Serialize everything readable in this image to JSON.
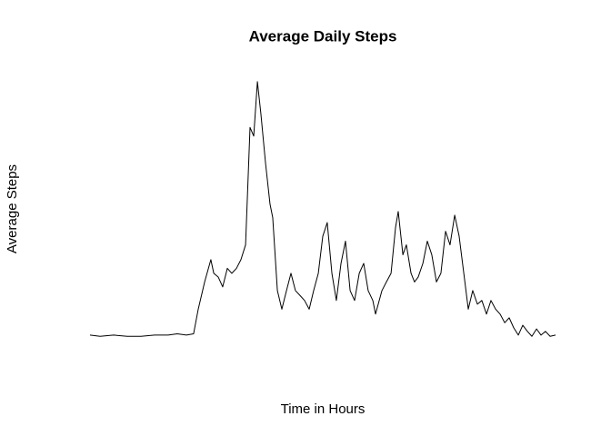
{
  "chart_data": {
    "type": "line",
    "title": "Average Daily Steps",
    "xlabel": "Time in Hours",
    "ylabel": "Average Steps",
    "color": "#000000",
    "x": [
      0,
      0.52,
      1.22,
      1.92,
      2.63,
      3.33,
      4.03,
      4.5,
      4.97,
      5.34,
      5.58,
      5.91,
      6.23,
      6.38,
      6.61,
      6.84,
      7.08,
      7.31,
      7.55,
      7.78,
      8.02,
      8.25,
      8.44,
      8.63,
      8.81,
      9.05,
      9.28,
      9.42,
      9.66,
      9.89,
      10.13,
      10.36,
      10.59,
      10.83,
      11.06,
      11.3,
      11.53,
      11.77,
      12.0,
      12.23,
      12.47,
      12.7,
      12.94,
      13.17,
      13.41,
      13.64,
      13.88,
      14.11,
      14.34,
      14.58,
      14.72,
      15.05,
      15.28,
      15.52,
      15.75,
      15.89,
      16.13,
      16.31,
      16.55,
      16.73,
      16.92,
      17.16,
      17.39,
      17.62,
      17.86,
      18.09,
      18.33,
      18.56,
      18.8,
      19.03,
      19.27,
      19.5,
      19.73,
      19.97,
      20.2,
      20.44,
      20.67,
      20.91,
      21.14,
      21.38,
      21.61,
      21.84,
      22.08,
      22.31,
      22.55,
      22.78,
      23.02,
      23.25,
      23.48,
      23.72,
      24
    ],
    "values": [
      1,
      0,
      1,
      0,
      0,
      1,
      1,
      2,
      1,
      2,
      22,
      44,
      62,
      51,
      48,
      40,
      55,
      51,
      55,
      62,
      74,
      169,
      162,
      206,
      180,
      140,
      107,
      96,
      37,
      22,
      37,
      51,
      37,
      33,
      29,
      22,
      37,
      51,
      81,
      92,
      51,
      29,
      59,
      77,
      37,
      29,
      51,
      59,
      37,
      29,
      18,
      37,
      44,
      51,
      88,
      101,
      66,
      74,
      51,
      44,
      48,
      59,
      77,
      66,
      44,
      51,
      85,
      74,
      98,
      81,
      51,
      22,
      37,
      26,
      29,
      18,
      29,
      22,
      18,
      11,
      15,
      7,
      1,
      9,
      4,
      0,
      6,
      1,
      4,
      0,
      1
    ],
    "xlim": [
      -0.96,
      24.96
    ],
    "ylim": [
      -8.25,
      214.4
    ]
  }
}
